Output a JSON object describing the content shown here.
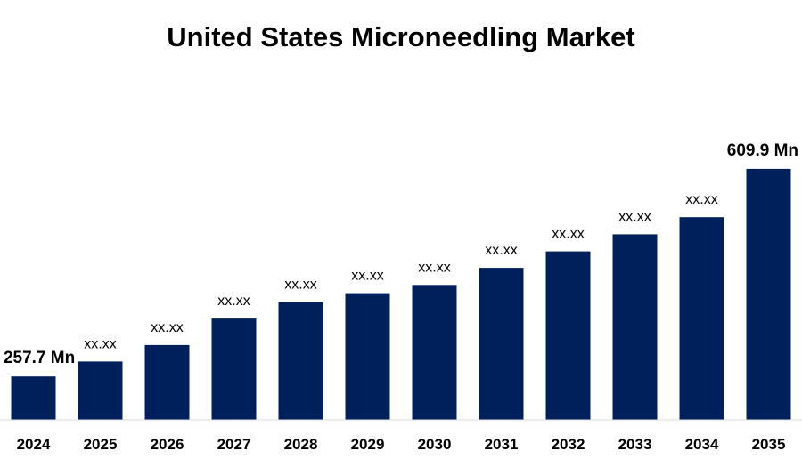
{
  "chart_data": {
    "type": "bar",
    "title": "United States Microneedling Market",
    "xlabel": "",
    "ylabel": "",
    "categories": [
      "2024",
      "2025",
      "2026",
      "2027",
      "2028",
      "2029",
      "2030",
      "2031",
      "2032",
      "2033",
      "2034",
      "2035"
    ],
    "values": [
      257.7,
      283.0,
      311.0,
      356.0,
      384.0,
      399.0,
      413.0,
      442.0,
      470.0,
      499.0,
      528.0,
      609.9
    ],
    "data_labels": [
      "257.7 Mn",
      "xx.xx",
      "xx.xx",
      "xx.xx",
      "xx.xx",
      "xx.xx",
      "xx.xx",
      "xx.xx",
      "xx.xx",
      "xx.xx",
      "xx.xx",
      "609.9 Mn"
    ],
    "ylim": [
      184.0,
      640.0
    ],
    "grid": false,
    "legend": "none",
    "colors": {
      "bar": "#00205b",
      "axis": "#d9d9d9",
      "text": "#000000"
    }
  }
}
